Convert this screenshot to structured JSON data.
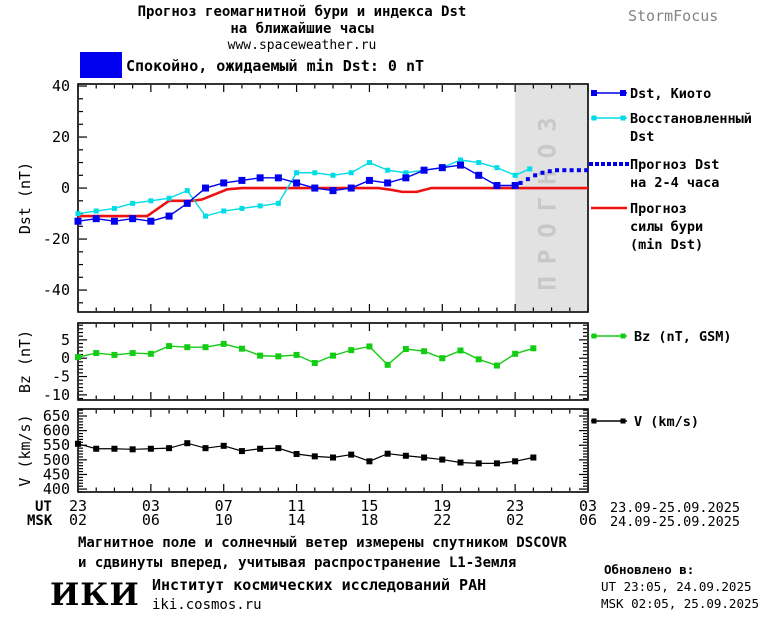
{
  "header": {
    "title_line1": "Прогноз геомагнитной бури и индекса Dst",
    "title_line2": "на ближайшие часы",
    "title_line3": "www.spaceweather.ru",
    "brand": "StormFocus"
  },
  "status": {
    "label": "Спокойно, ожидаемый min Dst: 0 nT",
    "box_color": "#0000ee"
  },
  "legend": {
    "dst_kyoto": "Dst, Киото",
    "restored_line1": "Восстановленный",
    "restored_line2": "Dst",
    "forecast_line1": "Прогноз Dst",
    "forecast_line2": "на 2-4 часа",
    "storm_line1": "Прогноз",
    "storm_line2": "силы бури",
    "storm_line3": "(min Dst)",
    "bz": "Bz (nT, GSM)",
    "v": "V (km/s)"
  },
  "xaxis": {
    "ut_header": "UT",
    "msk_header": "MSK",
    "ut_labels": [
      "23",
      "03",
      "07",
      "11",
      "15",
      "19",
      "23",
      "03"
    ],
    "msk_labels": [
      "02",
      "06",
      "10",
      "14",
      "18",
      "22",
      "02",
      "06"
    ],
    "ut_dates": "23.09-25.09.2025",
    "msk_dates": "24.09-25.09.2025"
  },
  "footer": {
    "note_line1": "Магнитное поле и солнечный ветер измерены спутником DSCOVR",
    "note_line2": "и сдвинуты вперед, учитывая распространение L1-Земля",
    "logo": "ИКИ",
    "institute": "Институт космических исследований РАН",
    "site": "iki.cosmos.ru",
    "updated_title": "Обновлено в:",
    "updated_ut": "UT  23:05, 24.09.2025",
    "updated_msk": "MSK 02:05, 25.09.2025"
  },
  "chart_data": [
    {
      "type": "line",
      "name_slug": "dst-chart",
      "ylabel": "Dst (nT)",
      "ylim": [
        -48.6,
        40.8
      ],
      "yticks": [
        40,
        20,
        0,
        -20,
        -40
      ],
      "ytick_minor_step": 5,
      "xlim": [
        0,
        28
      ],
      "xticks": [
        0,
        4,
        8,
        12,
        16,
        20,
        24,
        28
      ],
      "x_unit": "hours from 23:00 UT 23.09.2025",
      "grid": false,
      "forecast_region": {
        "x_start": 24,
        "x_end": 28,
        "label": "ПРОГНОЗ",
        "fill": "#e2e2e2",
        "label_color": "#c8c8c8"
      },
      "series": [
        {
          "name": "Прогноз силы бури (min Dst)",
          "slug": "storm-forecast-line",
          "color": "#ee1111",
          "style": "line",
          "width": 2.6,
          "x": [
            0,
            3.8,
            5,
            6.3,
            6.8,
            8.2,
            9,
            16.5,
            17.2,
            17.8,
            18.6,
            19.4,
            28
          ],
          "y": [
            -11,
            -11,
            -5,
            -5,
            -4.5,
            -0.5,
            0,
            0,
            -0.7,
            -1.5,
            -1.5,
            0,
            0
          ]
        },
        {
          "name": "Восстановленный Dst",
          "slug": "restored-dst-series",
          "color": "#00dde6",
          "style": "line-markers",
          "marker_size": 5,
          "width": 1.4,
          "x": [
            0,
            1,
            2,
            3,
            4,
            5,
            6,
            7,
            8,
            9,
            10,
            11,
            12,
            13,
            14,
            15,
            16,
            17,
            18,
            19,
            20,
            21,
            22,
            23,
            24,
            24.8
          ],
          "y": [
            -10,
            -9,
            -8,
            -6,
            -5,
            -4,
            -1,
            -11,
            -9,
            -8,
            -7,
            -6,
            6,
            6,
            5,
            6,
            10,
            7,
            6,
            7,
            8,
            11,
            10,
            8,
            5,
            7.5
          ]
        },
        {
          "name": "Dst, Киото",
          "slug": "dst-kyoto-series",
          "color": "#0000ee",
          "style": "line-markers",
          "marker_size": 7,
          "width": 1.4,
          "x": [
            0,
            1,
            2,
            3,
            4,
            5,
            6,
            7,
            8,
            9,
            10,
            11,
            12,
            13,
            14,
            15,
            16,
            17,
            18,
            19,
            20,
            21,
            22,
            23,
            24
          ],
          "y": [
            -13,
            -12,
            -13,
            -12,
            -13,
            -11,
            -6,
            0,
            2,
            3,
            4,
            4,
            2,
            0,
            -1,
            0,
            3,
            2,
            4,
            7,
            8,
            9,
            5,
            1,
            1
          ]
        },
        {
          "name": "Прогноз Dst на 2-4 часа",
          "slug": "forecast-dst-series",
          "color": "#0000ee",
          "style": "dotted",
          "marker_size": 4,
          "x": [
            24.3,
            24.7,
            25.1,
            25.5,
            25.9,
            26.3,
            26.7,
            27.1,
            27.5,
            27.9
          ],
          "y": [
            2,
            3.5,
            5,
            6,
            6.6,
            7,
            7,
            7,
            7,
            7
          ]
        }
      ]
    },
    {
      "type": "line",
      "name_slug": "bz-chart",
      "ylabel": "Bz (nT)",
      "ylim": [
        -11.4,
        9.6
      ],
      "yticks": [
        5,
        0,
        -5,
        -10
      ],
      "ytick_minor_step": 1,
      "xlim": [
        0,
        28
      ],
      "xticks": [
        0,
        4,
        8,
        12,
        16,
        20,
        24,
        28
      ],
      "grid": false,
      "series": [
        {
          "name": "Bz (nT, GSM)",
          "slug": "bz-series",
          "color": "#15cc15",
          "style": "line-markers",
          "marker_size": 6,
          "width": 1.4,
          "x": [
            0,
            1,
            2,
            3,
            4,
            5,
            6,
            7,
            8,
            9,
            10,
            11,
            12,
            13,
            14,
            15,
            16,
            17,
            18,
            19,
            20,
            21,
            22,
            23,
            24,
            25
          ],
          "y": [
            0.3,
            1.4,
            0.9,
            1.4,
            1.2,
            3.3,
            3.0,
            3.0,
            3.9,
            2.6,
            0.7,
            0.5,
            0.9,
            -1.3,
            0.7,
            2.2,
            3.2,
            -1.8,
            2.5,
            1.9,
            0.0,
            2.1,
            -0.3,
            -2.0,
            1.2,
            2.7
          ]
        }
      ]
    },
    {
      "type": "line",
      "name_slug": "v-chart",
      "ylabel": "V (km/s)",
      "ylim": [
        390,
        674
      ],
      "yticks": [
        650,
        600,
        550,
        500,
        450,
        400
      ],
      "ytick_minor_step": 10,
      "xlim": [
        0,
        28
      ],
      "xticks": [
        0,
        4,
        8,
        12,
        16,
        20,
        24,
        28
      ],
      "grid": false,
      "series": [
        {
          "name": "V (km/s)",
          "slug": "v-series",
          "color": "#000000",
          "style": "line-markers",
          "marker_size": 6,
          "width": 1.2,
          "x": [
            0,
            1,
            2,
            3,
            4,
            5,
            6,
            7,
            8,
            9,
            10,
            11,
            12,
            13,
            14,
            15,
            16,
            17,
            18,
            19,
            20,
            21,
            22,
            23,
            24,
            25
          ],
          "y": [
            555,
            538,
            538,
            536,
            538,
            540,
            557,
            540,
            548,
            530,
            538,
            540,
            520,
            512,
            508,
            518,
            495,
            521,
            514,
            508,
            501,
            491,
            488,
            488,
            495,
            508
          ]
        }
      ]
    }
  ]
}
